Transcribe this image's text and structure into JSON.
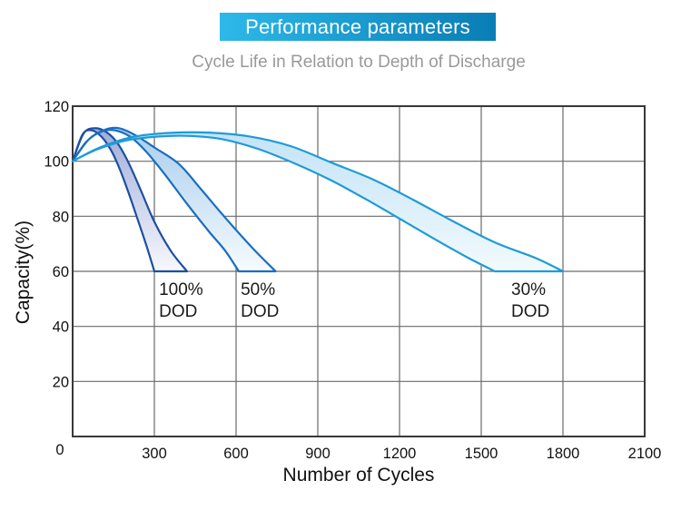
{
  "header": {
    "title": "Performance parameters",
    "subtitle": "Cycle Life in Relation to Depth of Discharge",
    "banner_gradient": [
      "#2db9e9",
      "#0a7db5"
    ],
    "subtitle_color": "#999999"
  },
  "chart_data": {
    "type": "area",
    "title": "Cycle Life in Relation to Depth of Discharge",
    "xlabel": "Number of Cycles",
    "ylabel": "Capacity(%)",
    "xlim": [
      0,
      2100
    ],
    "ylim": [
      0,
      120
    ],
    "xticks": [
      0,
      300,
      600,
      900,
      1200,
      1500,
      1800,
      2100
    ],
    "yticks": [
      0,
      20,
      40,
      60,
      80,
      100,
      120
    ],
    "grid": true,
    "legend_position": "none",
    "colors": {
      "plot_border": "#383838",
      "grid_line": "#6a6a6a",
      "tick_text": "#111111",
      "axis_title_text": "#111111",
      "band_label_text": "#1a1a1a"
    },
    "series": [
      {
        "name": "100% DOD",
        "label": {
          "lines": [
            "100%",
            "DOD"
          ],
          "x_cycles": 317,
          "y_pct": 51.5
        },
        "stroke": "#1d4fa1",
        "fill_top": "#9fadd9",
        "fill_bottom": "#f7f8fd",
        "cycle_life_range_at_60pct": [
          300,
          420
        ],
        "upper": [
          [
            0,
            100
          ],
          [
            40,
            110
          ],
          [
            80,
            112
          ],
          [
            125,
            110.5
          ],
          [
            165,
            106.5
          ],
          [
            205,
            99.5
          ],
          [
            250,
            89.5
          ],
          [
            300,
            78
          ],
          [
            360,
            67.5
          ],
          [
            420,
            60
          ]
        ],
        "lower": [
          [
            0,
            100
          ],
          [
            35,
            109.5
          ],
          [
            65,
            111.3
          ],
          [
            100,
            109.5
          ],
          [
            135,
            105
          ],
          [
            165,
            99
          ],
          [
            200,
            90
          ],
          [
            240,
            78.5
          ],
          [
            272,
            69
          ],
          [
            300,
            60
          ]
        ]
      },
      {
        "name": "50% DOD",
        "label": {
          "lines": [
            "50%",
            "DOD"
          ],
          "x_cycles": 617,
          "y_pct": 51.5
        },
        "stroke": "#1a6ec2",
        "fill_top": "#a8cdec",
        "fill_bottom": "#f6fbfe",
        "cycle_life_range_at_60pct": [
          610,
          745
        ],
        "upper": [
          [
            0,
            100
          ],
          [
            60,
            108
          ],
          [
            120,
            111.5
          ],
          [
            170,
            112
          ],
          [
            230,
            109.5
          ],
          [
            300,
            105
          ],
          [
            390,
            99
          ],
          [
            470,
            90
          ],
          [
            560,
            79.5
          ],
          [
            660,
            68.5
          ],
          [
            745,
            60
          ]
        ],
        "lower": [
          [
            0,
            100
          ],
          [
            50,
            107
          ],
          [
            100,
            110.5
          ],
          [
            150,
            111.3
          ],
          [
            210,
            109
          ],
          [
            270,
            103.5
          ],
          [
            340,
            95
          ],
          [
            420,
            84.5
          ],
          [
            500,
            74.5
          ],
          [
            560,
            67.5
          ],
          [
            610,
            60
          ]
        ]
      },
      {
        "name": "30% DOD",
        "label": {
          "lines": [
            "30%",
            "DOD"
          ],
          "x_cycles": 1610,
          "y_pct": 51.5
        },
        "stroke": "#1e9bd7",
        "fill_top": "#c3e3f6",
        "fill_bottom": "#f2fafd",
        "cycle_life_range_at_60pct": [
          1550,
          1800
        ],
        "upper": [
          [
            0,
            100
          ],
          [
            100,
            105
          ],
          [
            220,
            108.8
          ],
          [
            360,
            110.3
          ],
          [
            500,
            110.4
          ],
          [
            650,
            109
          ],
          [
            800,
            105.5
          ],
          [
            950,
            99.5
          ],
          [
            1100,
            93.5
          ],
          [
            1250,
            86
          ],
          [
            1400,
            78
          ],
          [
            1550,
            70.5
          ],
          [
            1700,
            64.8
          ],
          [
            1800,
            60
          ]
        ],
        "lower": [
          [
            0,
            100
          ],
          [
            90,
            104.3
          ],
          [
            200,
            107.6
          ],
          [
            320,
            109
          ],
          [
            430,
            109.2
          ],
          [
            550,
            108
          ],
          [
            680,
            104.5
          ],
          [
            820,
            99
          ],
          [
            950,
            93
          ],
          [
            1080,
            86
          ],
          [
            1220,
            78
          ],
          [
            1350,
            70.5
          ],
          [
            1460,
            64.5
          ],
          [
            1550,
            60
          ]
        ]
      }
    ]
  }
}
